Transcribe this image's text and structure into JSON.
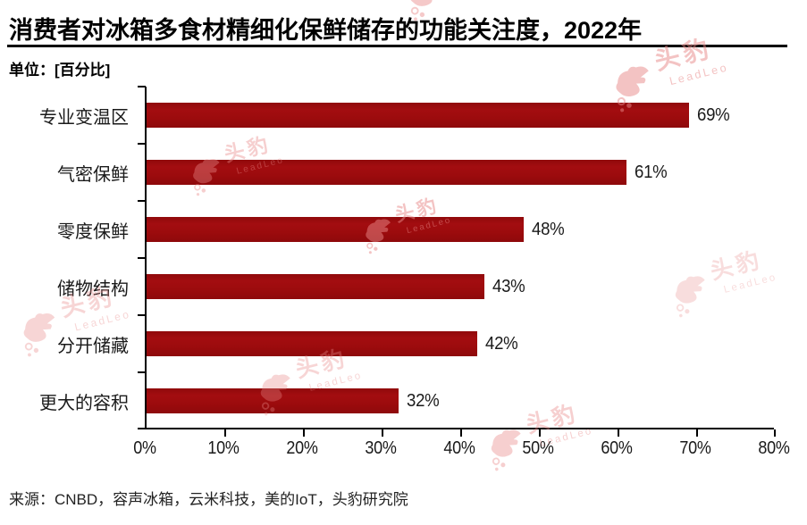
{
  "title": "消费者对冰箱多食材精细化保鲜储存的功能关注度，2022年",
  "unit_label": "单位：[百分比]",
  "source": "来源：CNBD，容声冰箱，云米科技，美的IoT，头豹研究院",
  "watermark": {
    "zh": "头豹",
    "en": "LeadLeo"
  },
  "colors": {
    "bar": "#9C0B0D",
    "axis": "#000000",
    "text": "#1A1A1A",
    "watermark": "#E98989",
    "background": "#FFFFFF"
  },
  "chart_data": {
    "type": "bar",
    "orientation": "horizontal",
    "title": "消费者对冰箱多食材精细化保鲜储存的功能关注度，2022年",
    "xlabel": "",
    "ylabel": "",
    "unit": "百分比",
    "categories": [
      "专业变温区",
      "气密保鲜",
      "零度保鲜",
      "储物结构",
      "分开储藏",
      "更大的容积"
    ],
    "values": [
      69,
      61,
      48,
      43,
      42,
      32
    ],
    "value_labels": [
      "69%",
      "61%",
      "48%",
      "43%",
      "42%",
      "32%"
    ],
    "x_ticks": [
      "0%",
      "10%",
      "20%",
      "30%",
      "40%",
      "50%",
      "60%",
      "70%",
      "80%"
    ],
    "xlim": [
      0,
      80
    ],
    "grid": false,
    "legend": "none"
  }
}
